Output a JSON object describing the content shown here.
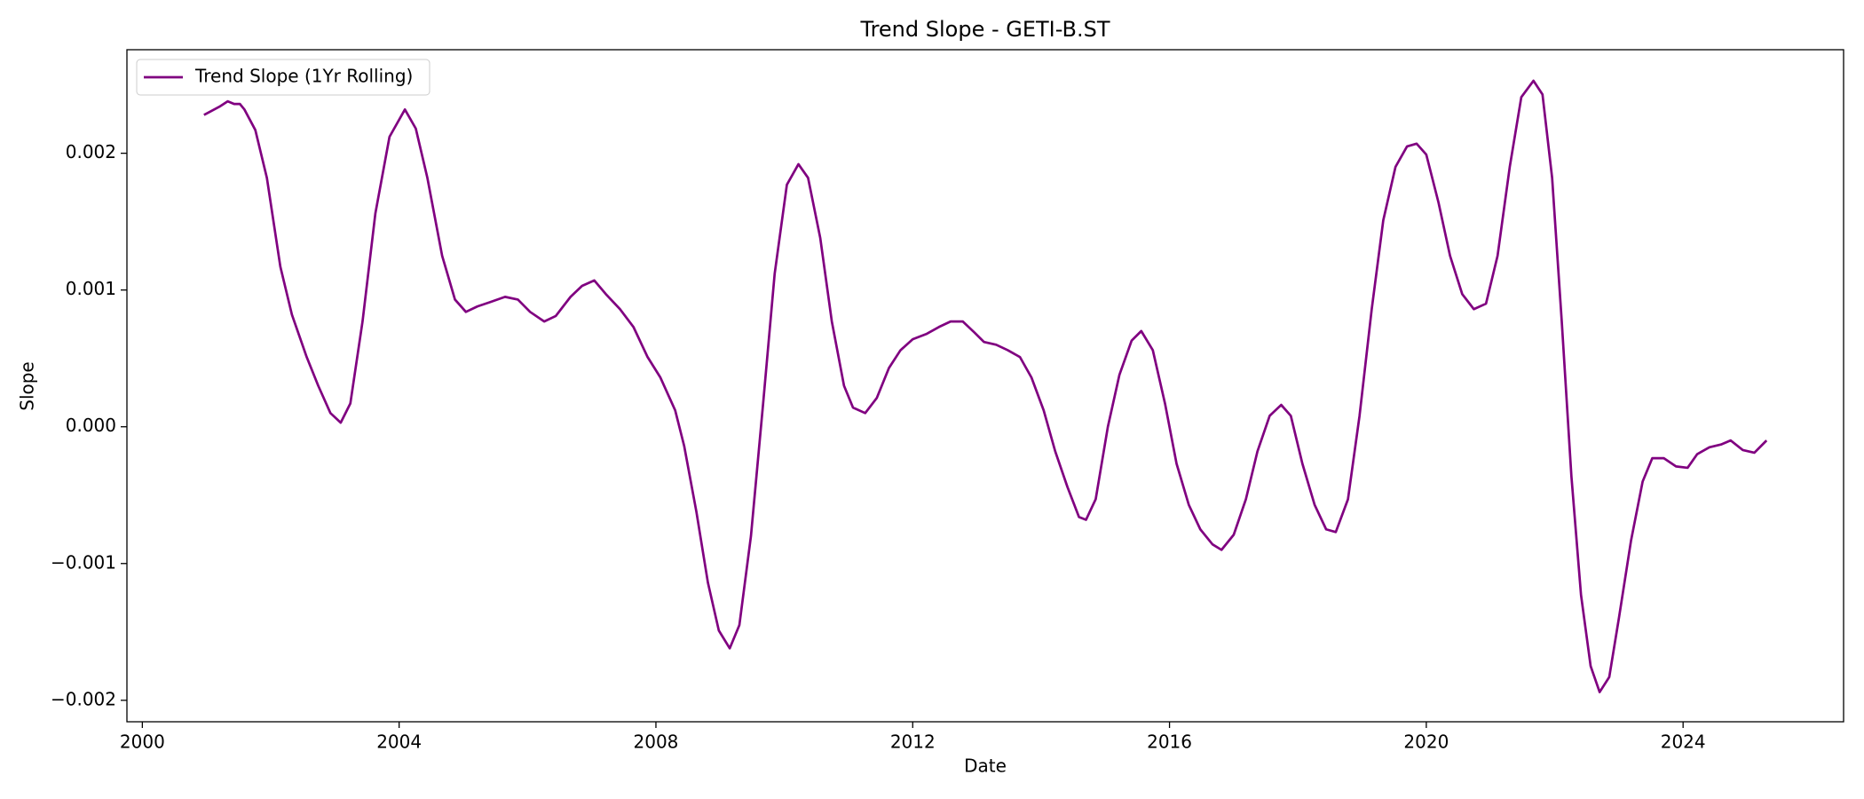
{
  "chart_data": {
    "type": "line",
    "title": "Trend Slope - GETI-B.ST",
    "xlabel": "Date",
    "ylabel": "Slope",
    "legend": "upper left",
    "grid": false,
    "xlim": [
      1999.76,
      2026.5
    ],
    "ylim": [
      -0.002157,
      0.002757
    ],
    "xticks": [
      2000,
      2004,
      2008,
      2012,
      2016,
      2020,
      2024
    ],
    "yticks": [
      {
        "value": -0.002,
        "label": "−0.002"
      },
      {
        "value": -0.001,
        "label": "−0.001"
      },
      {
        "value": 0,
        "label": "0.000"
      },
      {
        "value": 0.001,
        "label": "0.001"
      },
      {
        "value": 0.002,
        "label": "0.002"
      }
    ],
    "series": [
      {
        "name": "Trend Slope (1Yr Rolling)",
        "color": "#800080",
        "x": [
          2000.96,
          2001.2,
          2001.33,
          2001.43,
          2001.52,
          2001.59,
          2001.76,
          2001.94,
          2002.15,
          2002.33,
          2002.56,
          2002.74,
          2002.93,
          2003.09,
          2003.24,
          2003.43,
          2003.63,
          2003.85,
          2004.09,
          2004.26,
          2004.44,
          2004.67,
          2004.87,
          2005.04,
          2005.22,
          2005.41,
          2005.65,
          2005.85,
          2006.04,
          2006.26,
          2006.44,
          2006.67,
          2006.85,
          2007.04,
          2007.22,
          2007.44,
          2007.65,
          2007.87,
          2008.07,
          2008.3,
          2008.44,
          2008.63,
          2008.81,
          2008.98,
          2009.15,
          2009.3,
          2009.48,
          2009.67,
          2009.85,
          2010.04,
          2010.22,
          2010.37,
          2010.56,
          2010.74,
          2010.93,
          2011.07,
          2011.26,
          2011.44,
          2011.63,
          2011.81,
          2012.0,
          2012.22,
          2012.41,
          2012.59,
          2012.78,
          2012.96,
          2013.11,
          2013.3,
          2013.48,
          2013.67,
          2013.85,
          2014.04,
          2014.22,
          2014.41,
          2014.59,
          2014.7,
          2014.85,
          2015.04,
          2015.22,
          2015.41,
          2015.56,
          2015.74,
          2015.93,
          2016.11,
          2016.3,
          2016.48,
          2016.67,
          2016.81,
          2017.0,
          2017.19,
          2017.37,
          2017.56,
          2017.74,
          2017.89,
          2018.07,
          2018.26,
          2018.44,
          2018.59,
          2018.78,
          2018.96,
          2019.15,
          2019.33,
          2019.52,
          2019.7,
          2019.85,
          2020.0,
          2020.19,
          2020.37,
          2020.56,
          2020.74,
          2020.93,
          2021.11,
          2021.3,
          2021.48,
          2021.67,
          2021.81,
          2021.96,
          2022.11,
          2022.26,
          2022.41,
          2022.56,
          2022.7,
          2022.85,
          2023.0,
          2023.19,
          2023.37,
          2023.52,
          2023.7,
          2023.89,
          2024.07,
          2024.22,
          2024.41,
          2024.59,
          2024.74,
          2024.93,
          2025.11,
          2025.3
        ],
        "values": [
          0.00228,
          0.00234,
          0.00238,
          0.00236,
          0.00236,
          0.00232,
          0.00217,
          0.00182,
          0.00117,
          0.00082,
          0.00051,
          0.0003,
          0.0001,
          3e-05,
          0.00017,
          0.00077,
          0.00156,
          0.00212,
          0.00232,
          0.00218,
          0.00182,
          0.00125,
          0.00093,
          0.00084,
          0.00088,
          0.00091,
          0.00095,
          0.00093,
          0.00084,
          0.00077,
          0.00081,
          0.00095,
          0.00103,
          0.00107,
          0.00097,
          0.00086,
          0.00073,
          0.00051,
          0.00036,
          0.00012,
          -0.00014,
          -0.00062,
          -0.00114,
          -0.00149,
          -0.00162,
          -0.00145,
          -0.0008,
          0.00017,
          0.00112,
          0.00177,
          0.00192,
          0.00182,
          0.00138,
          0.00077,
          0.0003,
          0.00014,
          0.0001,
          0.00021,
          0.00043,
          0.00056,
          0.00064,
          0.00068,
          0.00073,
          0.00077,
          0.00077,
          0.00069,
          0.00062,
          0.0006,
          0.00056,
          0.00051,
          0.00036,
          0.00012,
          -0.00018,
          -0.00044,
          -0.00066,
          -0.00068,
          -0.00053,
          0,
          0.00038,
          0.00063,
          0.0007,
          0.00056,
          0.00017,
          -0.00027,
          -0.00057,
          -0.00075,
          -0.00086,
          -0.0009,
          -0.00079,
          -0.00053,
          -0.00018,
          8e-05,
          0.00016,
          8e-05,
          -0.00027,
          -0.00057,
          -0.00075,
          -0.00077,
          -0.00053,
          8e-05,
          0.00086,
          0.00151,
          0.0019,
          0.00205,
          0.00207,
          0.00199,
          0.00164,
          0.00125,
          0.00097,
          0.00086,
          0.0009,
          0.00125,
          0.0019,
          0.00241,
          0.00253,
          0.00243,
          0.00182,
          0.00077,
          -0.00036,
          -0.00123,
          -0.00175,
          -0.00194,
          -0.00183,
          -0.0014,
          -0.00083,
          -0.0004,
          -0.00023,
          -0.00023,
          -0.00029,
          -0.0003,
          -0.0002,
          -0.00015,
          -0.00013,
          -0.0001,
          -0.00017,
          -0.00019,
          -0.0001
        ]
      }
    ]
  }
}
